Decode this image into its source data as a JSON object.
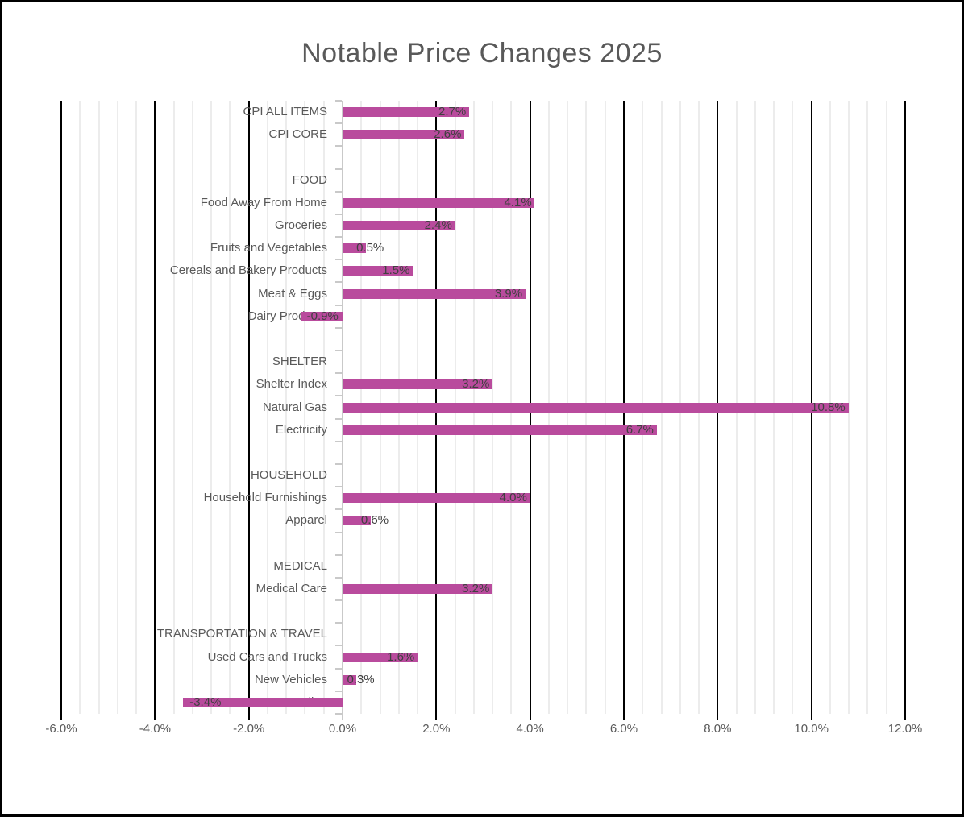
{
  "title": "Notable Price Changes 2025",
  "colors": {
    "bar": "#b94b9d",
    "title_text": "#595959",
    "category_text": "#595959",
    "data_label_text": "#404040",
    "major_gridline": "#000000",
    "minor_gridline": "#ececec",
    "category_axis": "#c9c9c9",
    "background": "#ffffff",
    "border": "#000000"
  },
  "chart_data": {
    "type": "bar",
    "orientation": "horizontal",
    "title": "Notable Price Changes 2025",
    "xlabel": "",
    "ylabel": "",
    "legend": "none",
    "grid": "major-and-minor",
    "axis": {
      "min": -6,
      "max": 12,
      "major_unit": 2,
      "minor_unit": 0.4,
      "tick_labels": [
        "-6.0%",
        "-4.0%",
        "-2.0%",
        "0.0%",
        "2.0%",
        "4.0%",
        "6.0%",
        "8.0%",
        "10.0%",
        "12.0%"
      ]
    },
    "rows": [
      {
        "label": "CPI ALL ITEMS",
        "value": 2.7,
        "display": "2.7%"
      },
      {
        "label": "CPI CORE",
        "value": 2.6,
        "display": "2.6%"
      },
      {
        "label": "",
        "value": null,
        "display": ""
      },
      {
        "label": "FOOD",
        "value": null,
        "display": ""
      },
      {
        "label": "Food Away From Home",
        "value": 4.1,
        "display": "4.1%"
      },
      {
        "label": "Groceries",
        "value": 2.4,
        "display": "2.4%"
      },
      {
        "label": "Fruits and Vegetables",
        "value": 0.5,
        "display": "0.5%"
      },
      {
        "label": "Cereals and Bakery Products",
        "value": 1.5,
        "display": "1.5%"
      },
      {
        "label": "Meat & Eggs",
        "value": 3.9,
        "display": "3.9%"
      },
      {
        "label": "Dairy Products",
        "value": -0.9,
        "display": "-0.9%"
      },
      {
        "label": "",
        "value": null,
        "display": ""
      },
      {
        "label": "SHELTER",
        "value": null,
        "display": ""
      },
      {
        "label": "Shelter Index",
        "value": 3.2,
        "display": "3.2%"
      },
      {
        "label": "Natural Gas",
        "value": 10.8,
        "display": "10.8%"
      },
      {
        "label": "Electricity",
        "value": 6.7,
        "display": "6.7%"
      },
      {
        "label": "",
        "value": null,
        "display": ""
      },
      {
        "label": "HOUSEHOLD",
        "value": null,
        "display": ""
      },
      {
        "label": "Household Furnishings",
        "value": 4.0,
        "display": "4.0%"
      },
      {
        "label": "Apparel",
        "value": 0.6,
        "display": "0.6%"
      },
      {
        "label": "",
        "value": null,
        "display": ""
      },
      {
        "label": "MEDICAL",
        "value": null,
        "display": ""
      },
      {
        "label": "Medical Care",
        "value": 3.2,
        "display": "3.2%"
      },
      {
        "label": "",
        "value": null,
        "display": ""
      },
      {
        "label": "TRANSPORTATION & TRAVEL",
        "value": null,
        "display": ""
      },
      {
        "label": "Used Cars and Trucks",
        "value": 1.6,
        "display": "1.6%"
      },
      {
        "label": "New Vehicles",
        "value": 0.3,
        "display": "0.3%"
      },
      {
        "label": "Gasoline",
        "value": -3.4,
        "display": "-3.4%"
      }
    ]
  }
}
